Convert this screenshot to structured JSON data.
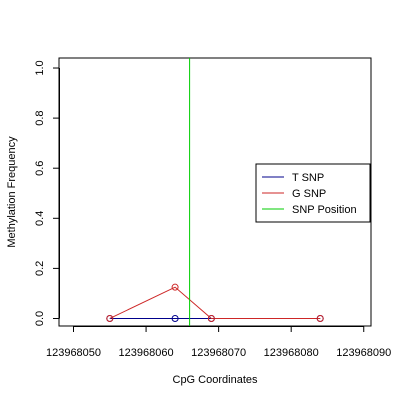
{
  "chart_data": {
    "type": "line",
    "xlabel": "CpG Coordinates",
    "ylabel": "Methylation Frequency",
    "xlim": [
      123968048,
      123968091
    ],
    "ylim": [
      -0.03,
      1.04
    ],
    "x_ticks": [
      123968050,
      123968060,
      123968070,
      123968080,
      123968090
    ],
    "x_tick_labels": [
      "123968050",
      "123968060",
      "123968070",
      "123968080",
      "123968090"
    ],
    "y_ticks": [
      0.0,
      0.2,
      0.4,
      0.6,
      0.8,
      1.0
    ],
    "y_tick_labels": [
      "0.0",
      "0.2",
      "0.4",
      "0.6",
      "0.8",
      "1.0"
    ],
    "grid": false,
    "legend_position": "right",
    "series": [
      {
        "name": "T SNP",
        "color": "#00008b",
        "x": [
          123968055,
          123968064,
          123968069,
          123968084
        ],
        "y": [
          0.0,
          0.0,
          0.0,
          0.0
        ]
      },
      {
        "name": "G SNP",
        "color": "#cd2626",
        "x": [
          123968055,
          123968064,
          123968069,
          123968084
        ],
        "y": [
          0.0,
          0.125,
          0.0,
          0.0
        ]
      }
    ],
    "snp_position": {
      "name": "SNP Position",
      "color": "#00cd00",
      "x": 123968066
    }
  }
}
